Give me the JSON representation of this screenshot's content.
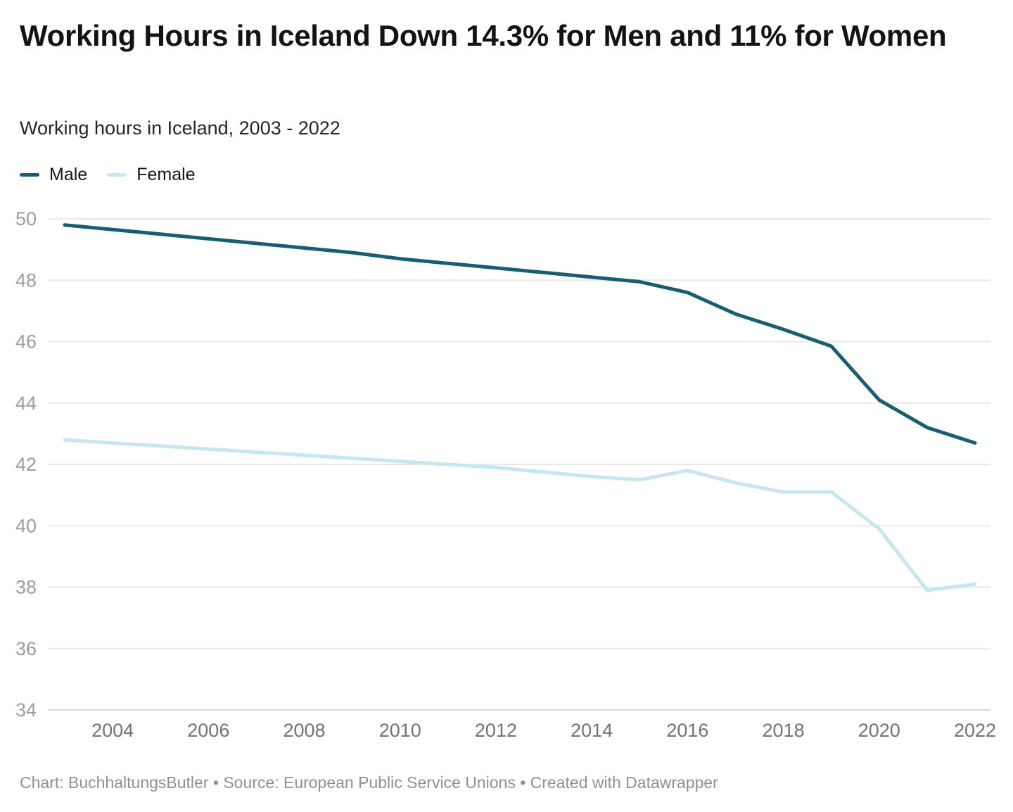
{
  "header": {
    "title": "Working Hours in Iceland Down 14.3% for Men and 11% for Women",
    "subtitle": "Working hours in Iceland, 2003 - 2022"
  },
  "legend": {
    "items": [
      {
        "id": "male",
        "label": "Male",
        "color": "#175d74"
      },
      {
        "id": "female",
        "label": "Female",
        "color": "#c6e7f0"
      }
    ]
  },
  "chart_data": {
    "type": "line",
    "title": "Working Hours in Iceland Down 14.3% for Men and 11% for Women",
    "subtitle": "Working hours in Iceland, 2003 - 2022",
    "x": [
      2003,
      2004,
      2005,
      2006,
      2007,
      2008,
      2009,
      2010,
      2011,
      2012,
      2013,
      2014,
      2015,
      2016,
      2017,
      2018,
      2019,
      2020,
      2021,
      2022
    ],
    "series": [
      {
        "name": "Male",
        "color": "#175d74",
        "values": [
          49.8,
          49.65,
          49.5,
          49.35,
          49.2,
          49.05,
          48.9,
          48.7,
          48.55,
          48.4,
          48.25,
          48.1,
          47.95,
          47.6,
          46.9,
          46.4,
          45.85,
          44.1,
          43.2,
          42.7
        ]
      },
      {
        "name": "Female",
        "color": "#c6e7f0",
        "values": [
          42.8,
          42.7,
          42.6,
          42.5,
          42.4,
          42.3,
          42.2,
          42.1,
          42.0,
          41.9,
          41.75,
          41.6,
          41.5,
          41.8,
          41.4,
          41.1,
          41.1,
          39.9,
          37.9,
          38.1
        ]
      }
    ],
    "xlabel": "",
    "ylabel": "",
    "ylim": [
      34,
      50
    ],
    "yticks": [
      34,
      36,
      38,
      40,
      42,
      44,
      46,
      48,
      50
    ],
    "xticks": [
      2004,
      2006,
      2008,
      2010,
      2012,
      2014,
      2016,
      2018,
      2020,
      2022
    ],
    "grid": "horizontal",
    "legend_position": "top-left"
  },
  "footer": {
    "text": "Chart: BuchhaltungsButler • Source: European Public Service Unions • Created with Datawrapper"
  },
  "colors": {
    "gridline": "#e8e8e8",
    "baseline": "#d7d7d7",
    "y_tick_label": "#9c9c9c",
    "x_tick_label": "#737373"
  }
}
